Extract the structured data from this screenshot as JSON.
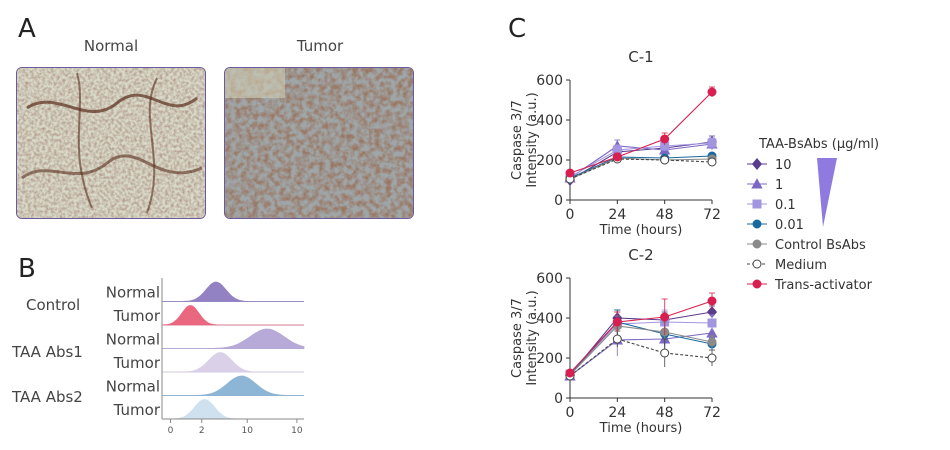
{
  "panels": {
    "a": {
      "letter": "A",
      "normal_title": "Normal",
      "tumor_title": "Tumor"
    },
    "b": {
      "letter": "B",
      "groups": [
        "Control",
        "TAA Abs1",
        "TAA Abs2"
      ],
      "rows": [
        {
          "group": "Control",
          "tissue": "Normal",
          "peak": 0.38,
          "width": 0.07,
          "color": "#8d7cc0"
        },
        {
          "group": "Control",
          "tissue": "Tumor",
          "peak": 0.2,
          "width": 0.06,
          "color": "#e8607a"
        },
        {
          "group": "TAA Abs1",
          "tissue": "Normal",
          "peak": 0.74,
          "width": 0.12,
          "color": "#b4a5d6"
        },
        {
          "group": "TAA Abs1",
          "tissue": "Tumor",
          "peak": 0.41,
          "width": 0.08,
          "color": "#d9cfe8"
        },
        {
          "group": "TAA Abs2",
          "tissue": "Normal",
          "peak": 0.56,
          "width": 0.1,
          "color": "#87b3d4"
        },
        {
          "group": "TAA Abs2",
          "tissue": "Tumor",
          "peak": 0.3,
          "width": 0.07,
          "color": "#cde0ee"
        }
      ],
      "axis_ticks": [
        {
          "label": "0",
          "pos": 0.06
        },
        {
          "label": "2",
          "pos": 0.28
        },
        {
          "label": "10",
          "pos": 0.6
        },
        {
          "label": "10",
          "pos": 0.95
        }
      ]
    },
    "c": {
      "letter": "C"
    }
  },
  "legend": {
    "title": "TAA-BsAbs (μg/ml)",
    "items": [
      {
        "label": "10",
        "marker": "diamond",
        "color": "#5a3c8c",
        "filled": true
      },
      {
        "label": "1",
        "marker": "triangle",
        "color": "#7c68c4",
        "filled": true
      },
      {
        "label": "0.1",
        "marker": "square",
        "color": "#a396e0",
        "filled": true
      },
      {
        "label": "0.01",
        "marker": "circle",
        "color": "#1a6a9e",
        "filled": true
      },
      {
        "label": "Control BsAbs",
        "marker": "circle",
        "color": "#8a8a8a",
        "filled": true
      },
      {
        "label": "Medium",
        "marker": "circle",
        "color": "#444444",
        "filled": false
      },
      {
        "label": "Trans-activator",
        "marker": "circle",
        "color": "#d81f4f",
        "filled": true
      }
    ],
    "ramp_color": "#8f7be0"
  },
  "chart_data": [
    {
      "type": "line",
      "title": "C-1",
      "xlabel": "Time (hours)",
      "ylabel": "Caspase 3/7 Intensity (a.u.)",
      "ylabel_lines": [
        "Caspase 3/7",
        "Intensity (a.u.)"
      ],
      "x": [
        0,
        24,
        48,
        72
      ],
      "xlim": [
        0,
        72
      ],
      "ylim": [
        0,
        600
      ],
      "yticks": [
        0,
        200,
        400,
        600
      ],
      "series": [
        {
          "name": "10",
          "values": [
            100,
            240,
            260,
            290
          ],
          "err": [
            15,
            30,
            30,
            30
          ],
          "color": "#5a3c8c",
          "marker": "diamond",
          "dashed": false,
          "filled": true
        },
        {
          "name": "1",
          "values": [
            110,
            270,
            250,
            280
          ],
          "err": [
            15,
            30,
            30,
            30
          ],
          "color": "#7c68c4",
          "marker": "triangle",
          "dashed": false,
          "filled": true
        },
        {
          "name": "0.1",
          "values": [
            115,
            250,
            270,
            285
          ],
          "err": [
            15,
            25,
            25,
            25
          ],
          "color": "#a396e0",
          "marker": "square",
          "dashed": false,
          "filled": true
        },
        {
          "name": "0.01",
          "values": [
            110,
            215,
            210,
            220
          ],
          "err": [
            10,
            15,
            15,
            15
          ],
          "color": "#1a6a9e",
          "marker": "circle",
          "dashed": false,
          "filled": true
        },
        {
          "name": "Control BsAbs",
          "values": [
            105,
            210,
            200,
            205
          ],
          "err": [
            10,
            15,
            15,
            15
          ],
          "color": "#8a8a8a",
          "marker": "circle",
          "dashed": false,
          "filled": true
        },
        {
          "name": "Medium",
          "values": [
            105,
            205,
            200,
            190
          ],
          "err": [
            10,
            15,
            15,
            15
          ],
          "color": "#444444",
          "marker": "circle",
          "dashed": true,
          "filled": false
        },
        {
          "name": "Trans-activator",
          "values": [
            135,
            215,
            305,
            540
          ],
          "err": [
            15,
            20,
            30,
            25
          ],
          "color": "#d81f4f",
          "marker": "circle",
          "dashed": false,
          "filled": true
        }
      ]
    },
    {
      "type": "line",
      "title": "C-2",
      "xlabel": "Time (hours)",
      "ylabel": "Caspase 3/7 Intensity (a.u.)",
      "ylabel_lines": [
        "Caspase 3/7",
        "Intensity (a.u.)"
      ],
      "x": [
        0,
        24,
        48,
        72
      ],
      "xlim": [
        0,
        72
      ],
      "ylim": [
        0,
        600
      ],
      "yticks": [
        0,
        200,
        400,
        600
      ],
      "series": [
        {
          "name": "10",
          "values": [
            115,
            400,
            390,
            430
          ],
          "err": [
            15,
            40,
            40,
            30
          ],
          "color": "#5a3c8c",
          "marker": "diamond",
          "dashed": false,
          "filled": true
        },
        {
          "name": "1",
          "values": [
            110,
            290,
            295,
            325
          ],
          "err": [
            15,
            80,
            80,
            40
          ],
          "color": "#7c68c4",
          "marker": "triangle",
          "dashed": false,
          "filled": true
        },
        {
          "name": "0.1",
          "values": [
            120,
            370,
            380,
            375
          ],
          "err": [
            15,
            60,
            60,
            40
          ],
          "color": "#a396e0",
          "marker": "square",
          "dashed": false,
          "filled": true
        },
        {
          "name": "0.01",
          "values": [
            120,
            380,
            320,
            270
          ],
          "err": [
            15,
            60,
            60,
            30
          ],
          "color": "#1a6a9e",
          "marker": "circle",
          "dashed": false,
          "filled": true
        },
        {
          "name": "Control BsAbs",
          "values": [
            115,
            360,
            330,
            280
          ],
          "err": [
            15,
            50,
            50,
            30
          ],
          "color": "#8a8a8a",
          "marker": "circle",
          "dashed": false,
          "filled": true
        },
        {
          "name": "Medium",
          "values": [
            110,
            295,
            225,
            200
          ],
          "err": [
            15,
            40,
            70,
            40
          ],
          "color": "#444444",
          "marker": "circle",
          "dashed": true,
          "filled": false
        },
        {
          "name": "Trans-activator",
          "values": [
            125,
            380,
            405,
            485
          ],
          "err": [
            15,
            50,
            90,
            40
          ],
          "color": "#d81f4f",
          "marker": "circle",
          "dashed": false,
          "filled": true
        }
      ]
    }
  ]
}
